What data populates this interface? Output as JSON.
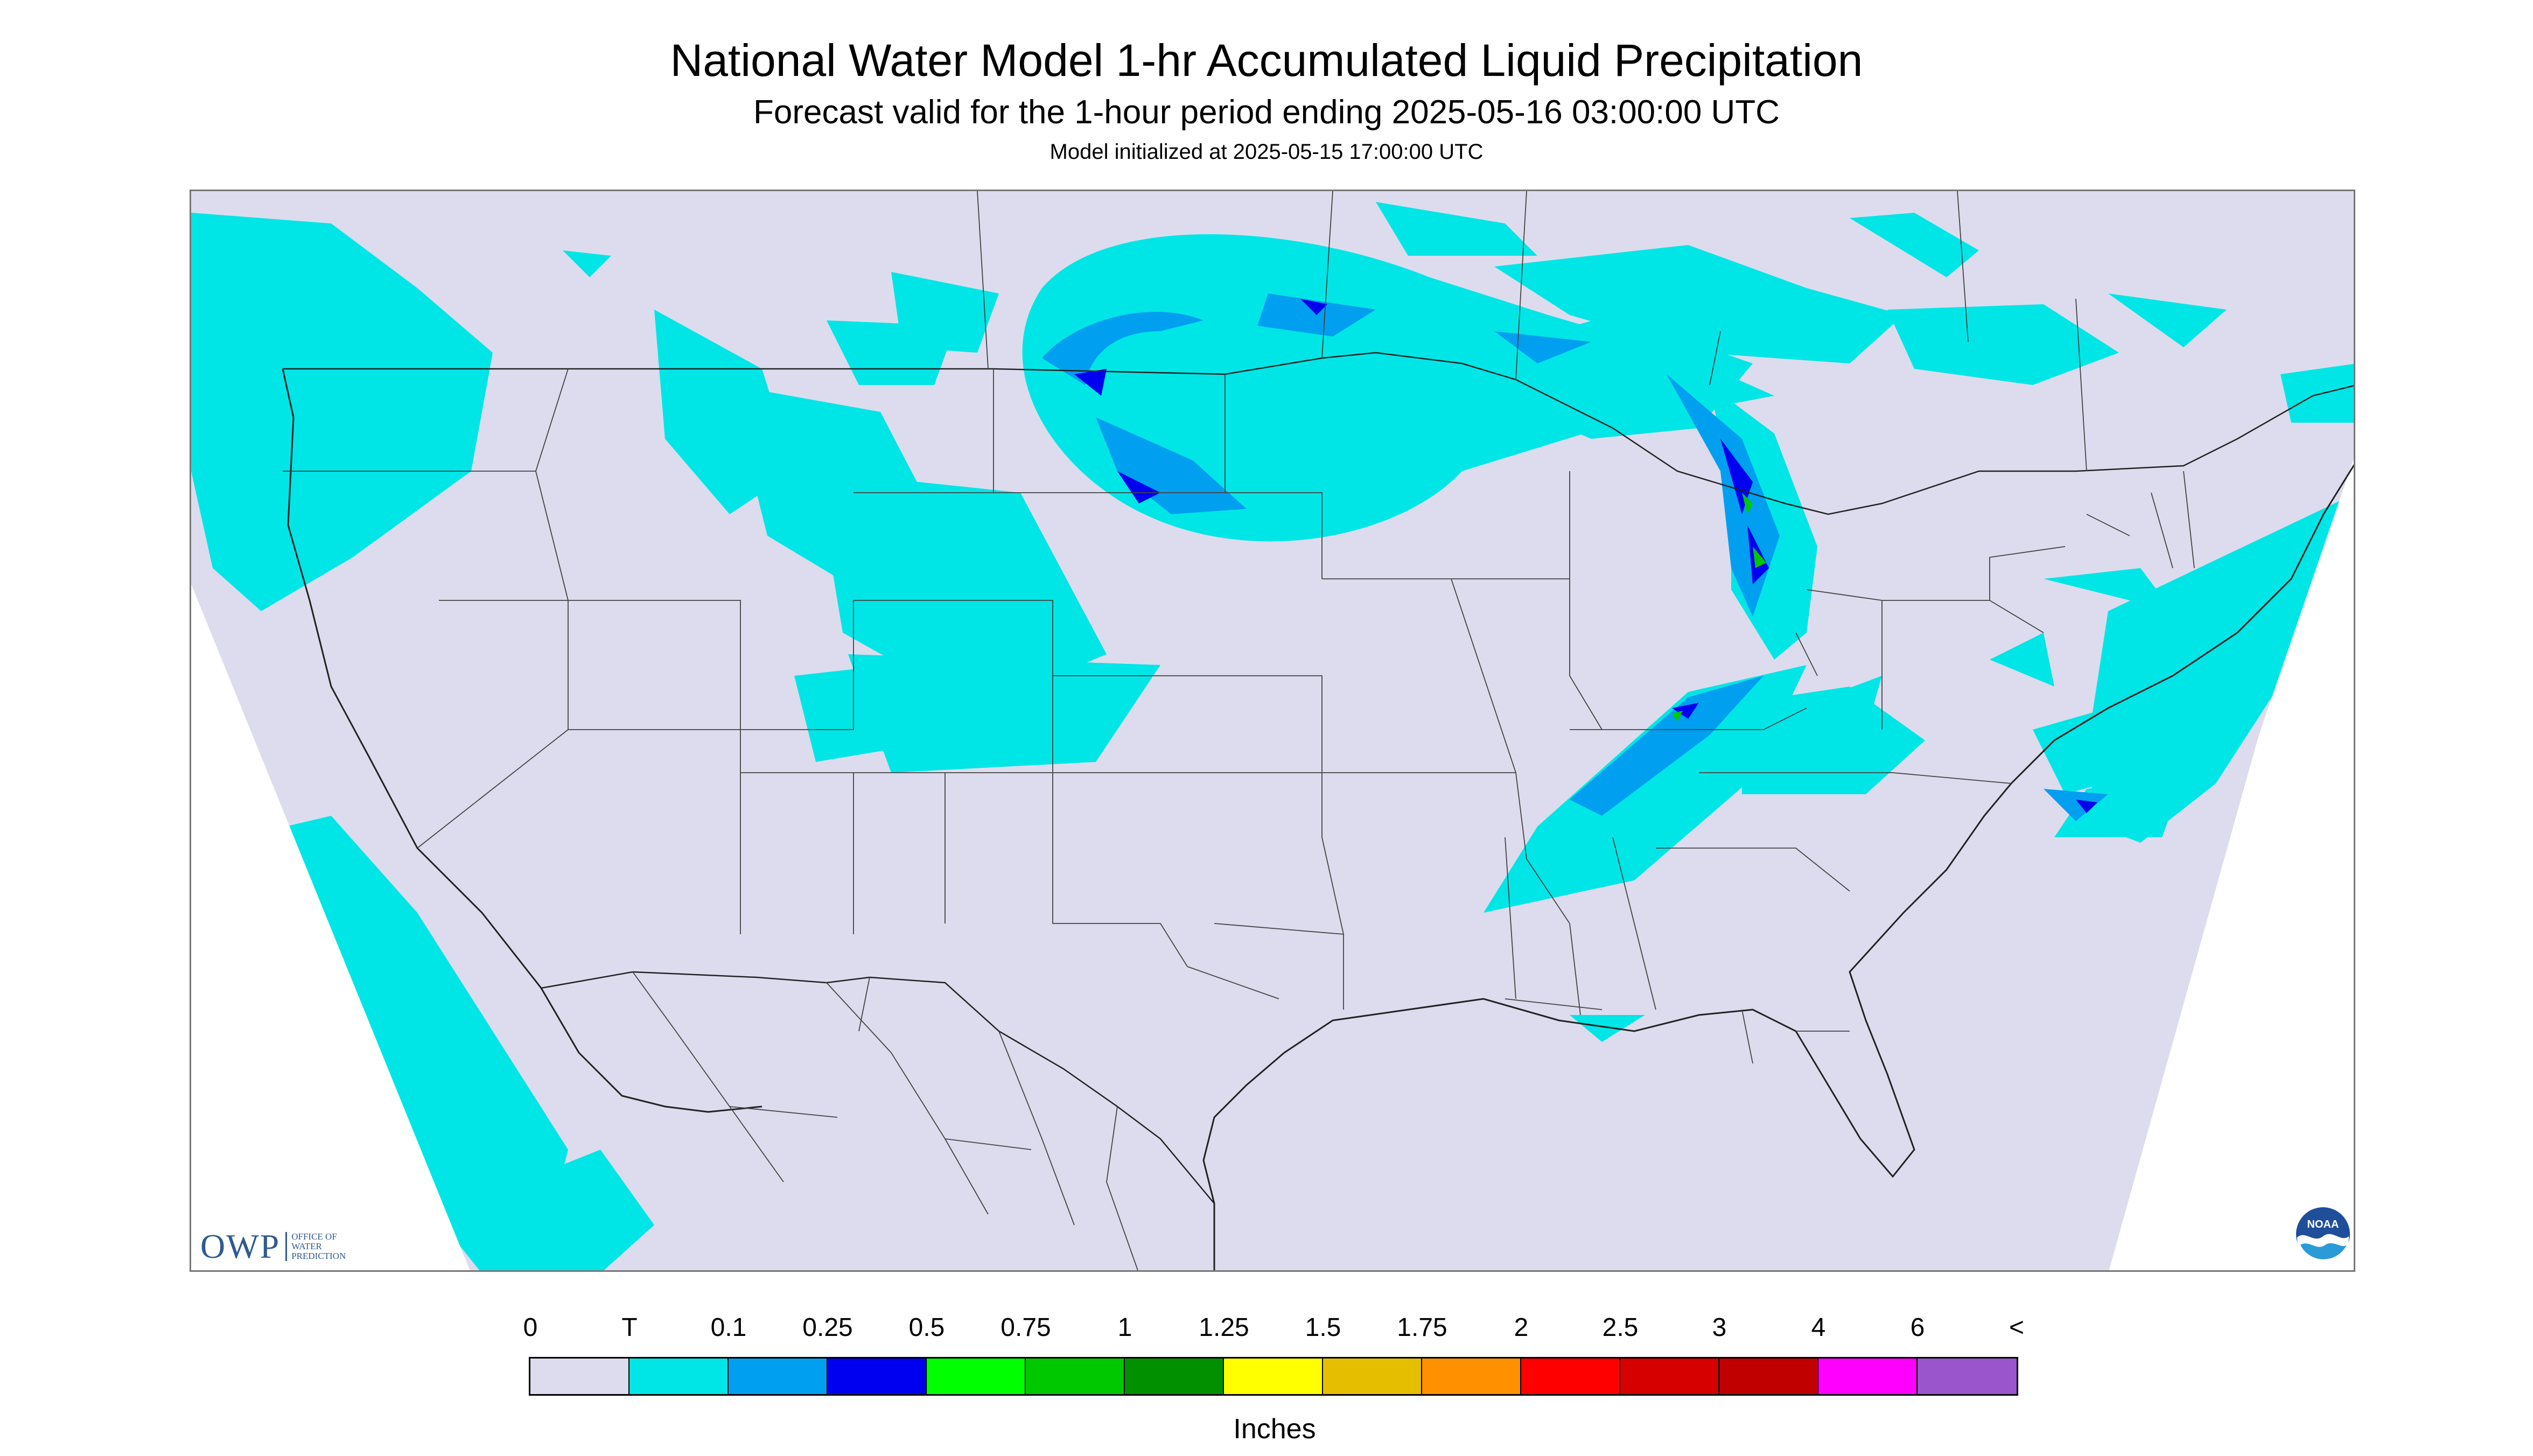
{
  "header": {
    "title": "National Water Model 1-hr Accumulated Liquid Precipitation",
    "subtitle": "Forecast valid for the 1-hour period ending 2025-05-16 03:00:00 UTC",
    "init": "Model initialized at 2025-05-15 17:00:00 UTC"
  },
  "logos": {
    "owp_mark": "OWP",
    "owp_sub": [
      "Office of",
      "Water",
      "Prediction"
    ],
    "noaa": "NOAA"
  },
  "colors": {
    "no_data": "#dcdcee",
    "land_bg": "#dcdcee",
    "outside_domain": "#ffffff",
    "boundary": "#333333"
  },
  "legend": {
    "units": "Inches",
    "ticks": [
      "0",
      "T",
      "0.1",
      "0.25",
      "0.5",
      "0.75",
      "1",
      "1.25",
      "1.5",
      "1.75",
      "2",
      "2.5",
      "3",
      "4",
      "6",
      "<"
    ],
    "colors": [
      "#dcdcee",
      "#00e6e6",
      "#009fef",
      "#0000f0",
      "#00ff00",
      "#00c800",
      "#009000",
      "#ffff00",
      "#e6be00",
      "#ff9000",
      "#ff0000",
      "#d60000",
      "#c00000",
      "#ff00ff",
      "#9a55cc"
    ]
  }
}
